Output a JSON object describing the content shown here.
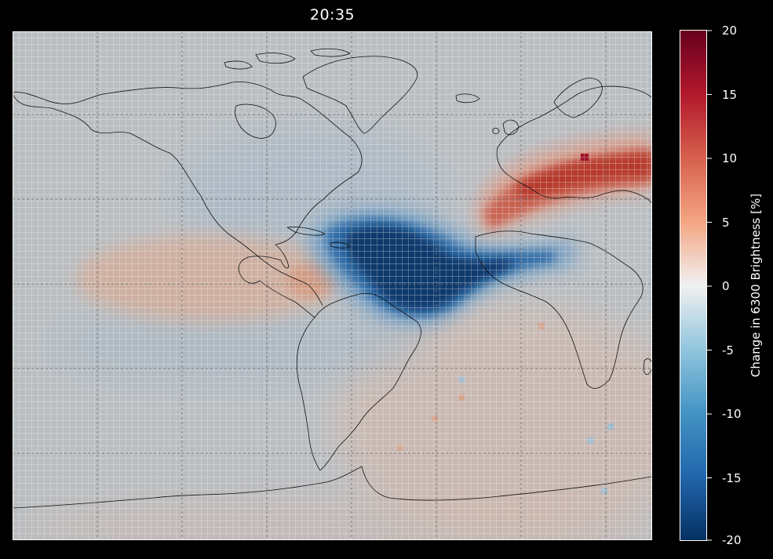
{
  "figure": {
    "title": "20:35",
    "background_color": "#000000",
    "text_color": "#ffffff"
  },
  "map": {
    "description_free": true,
    "grid_lines": "dotted",
    "coastline_color": "#111111"
  },
  "colorbar": {
    "label": "Change in 6300 Brightness [%]",
    "ticks": [
      "20",
      "15",
      "10",
      "5",
      "0",
      "-5",
      "-10",
      "-15",
      "-20"
    ],
    "tick_values": [
      20,
      15,
      10,
      5,
      0,
      -5,
      -10,
      -15,
      -20
    ],
    "range": [
      -20,
      20
    ],
    "colormap": "RdBu_r",
    "stops": [
      {
        "v": -20,
        "c": "#053061"
      },
      {
        "v": -15,
        "c": "#2166ac"
      },
      {
        "v": -10,
        "c": "#4393c3"
      },
      {
        "v": -5,
        "c": "#92c5de"
      },
      {
        "v": 0,
        "c": "#f1f1f1"
      },
      {
        "v": 5,
        "c": "#f4a582"
      },
      {
        "v": 10,
        "c": "#d6604d"
      },
      {
        "v": 15,
        "c": "#b2182b"
      },
      {
        "v": 20,
        "c": "#67001f"
      }
    ]
  },
  "chart_data": {
    "type": "heatmap",
    "title": "20:35",
    "colorbar_label": "Change in 6300 Brightness [%]",
    "value_range": [
      -20,
      20
    ],
    "grid": true,
    "features": [
      {
        "region": "Caribbean / north of South America",
        "value": -20
      },
      {
        "region": "Western Europe / Mediterranean",
        "value": 12
      },
      {
        "region": "Southern Europe peak",
        "value": 17
      },
      {
        "region": "Eastern Pacific off Central America",
        "value": 3
      },
      {
        "region": "South Atlantic",
        "value": 2
      },
      {
        "region": "Background",
        "value": -1
      }
    ]
  }
}
